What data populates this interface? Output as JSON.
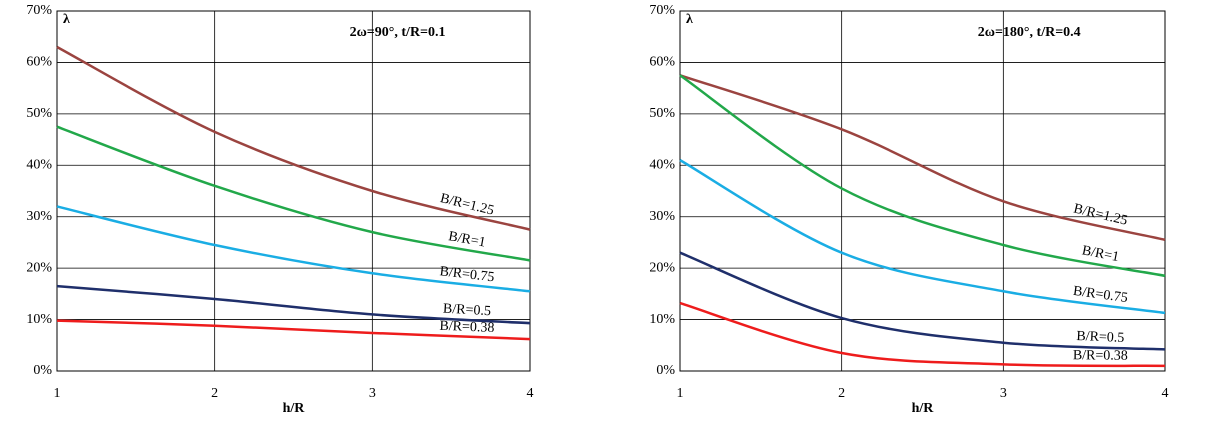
{
  "chart_data": [
    {
      "type": "line",
      "title": "2ω=90°, t/R=0.1",
      "y_label": "λ",
      "x_label": "h/R",
      "x": [
        1,
        2,
        3,
        4
      ],
      "xlim": [
        1,
        4
      ],
      "xticks": [
        1,
        2,
        3,
        4
      ],
      "ylim": [
        0,
        70
      ],
      "yticks": [
        {
          "value": 0,
          "label": "0%"
        },
        {
          "value": 10,
          "label": "10%"
        },
        {
          "value": 20,
          "label": "20%"
        },
        {
          "value": 30,
          "label": "30%"
        },
        {
          "value": 40,
          "label": "40%"
        },
        {
          "value": 50,
          "label": "50%"
        },
        {
          "value": 60,
          "label": "60%"
        },
        {
          "value": 70,
          "label": "70%"
        }
      ],
      "grid": true,
      "series": [
        {
          "name": "B/R=1.25",
          "color": "#9b4440",
          "values": [
            63,
            46.5,
            35,
            27.5
          ]
        },
        {
          "name": "B/R=1",
          "color": "#22a84a",
          "values": [
            47.5,
            36,
            27,
            21.5
          ]
        },
        {
          "name": "B/R=0.75",
          "color": "#1aade4",
          "values": [
            32,
            24.5,
            19,
            15.5
          ]
        },
        {
          "name": "B/R=0.5",
          "color": "#1f2f6b",
          "values": [
            16.5,
            14,
            11,
            9.3
          ]
        },
        {
          "name": "B/R=0.38",
          "color": "#ee1c1c",
          "values": [
            9.8,
            8.8,
            7.4,
            6.2
          ]
        }
      ]
    },
    {
      "type": "line",
      "title": "2ω=180°, t/R=0.4",
      "y_label": "λ",
      "x_label": "h/R",
      "x": [
        1,
        2,
        3,
        4
      ],
      "xlim": [
        1,
        4
      ],
      "xticks": [
        1,
        2,
        3,
        4
      ],
      "ylim": [
        0,
        70
      ],
      "yticks": [
        {
          "value": 0,
          "label": "0%"
        },
        {
          "value": 10,
          "label": "10%"
        },
        {
          "value": 20,
          "label": "20%"
        },
        {
          "value": 30,
          "label": "30%"
        },
        {
          "value": 40,
          "label": "40%"
        },
        {
          "value": 50,
          "label": "50%"
        },
        {
          "value": 60,
          "label": "60%"
        },
        {
          "value": 70,
          "label": "70%"
        }
      ],
      "grid": true,
      "series": [
        {
          "name": "B/R=1.25",
          "color": "#9b4440",
          "values": [
            57.5,
            47,
            33,
            25.5
          ]
        },
        {
          "name": "B/R=1",
          "color": "#22a84a",
          "values": [
            57.5,
            35.5,
            24.5,
            18.5
          ]
        },
        {
          "name": "B/R=0.75",
          "color": "#1aade4",
          "values": [
            41,
            23,
            15.5,
            11.3
          ]
        },
        {
          "name": "B/R=0.5",
          "color": "#1f2f6b",
          "values": [
            23,
            10.3,
            5.5,
            4.2
          ]
        },
        {
          "name": "B/R=0.38",
          "color": "#ee1c1c",
          "values": [
            13.2,
            3.5,
            1.3,
            1.0
          ]
        }
      ]
    }
  ]
}
